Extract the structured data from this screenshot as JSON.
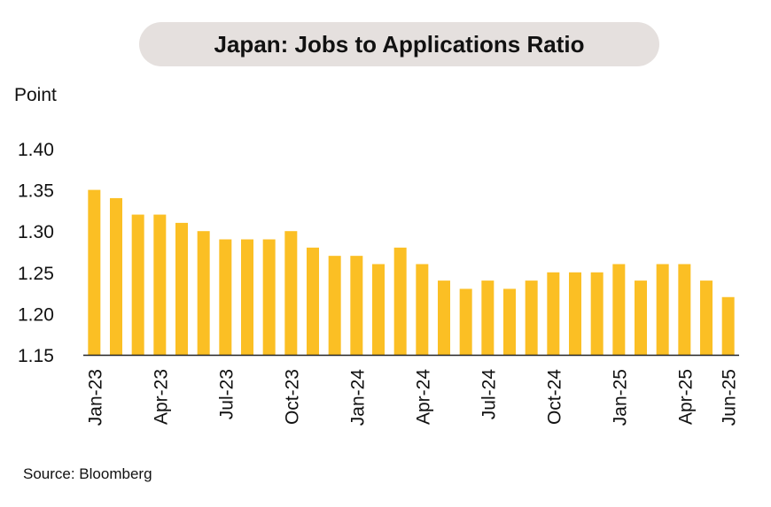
{
  "chart_data": {
    "type": "bar",
    "title": "Japan: Jobs to Applications Ratio",
    "ylabel": "Point",
    "source": "Source: Bloomberg",
    "categories": [
      "Jan-23",
      "Feb-23",
      "Mar-23",
      "Apr-23",
      "May-23",
      "Jun-23",
      "Jul-23",
      "Aug-23",
      "Sep-23",
      "Oct-23",
      "Nov-23",
      "Dec-23",
      "Jan-24",
      "Feb-24",
      "Mar-24",
      "Apr-24",
      "May-24",
      "Jun-24",
      "Jul-24",
      "Aug-24",
      "Sep-24",
      "Oct-24",
      "Nov-24",
      "Dec-24",
      "Jan-25",
      "Feb-25",
      "Mar-25",
      "Apr-25",
      "May-25",
      "Jun-25"
    ],
    "x_tick_labels": [
      "Jan-23",
      "Apr-23",
      "Jul-23",
      "Oct-23",
      "Jan-24",
      "Apr-24",
      "Jul-24",
      "Oct-24",
      "Jan-25",
      "Apr-25",
      "Jun-25"
    ],
    "values": [
      1.35,
      1.34,
      1.32,
      1.32,
      1.31,
      1.3,
      1.29,
      1.29,
      1.29,
      1.3,
      1.28,
      1.27,
      1.27,
      1.26,
      1.28,
      1.26,
      1.24,
      1.23,
      1.24,
      1.23,
      1.24,
      1.25,
      1.25,
      1.25,
      1.26,
      1.24,
      1.26,
      1.26,
      1.24,
      1.22
    ],
    "y_ticks": [
      "1.15",
      "1.20",
      "1.25",
      "1.30",
      "1.35",
      "1.40"
    ],
    "ylim": [
      1.15,
      1.4
    ],
    "grid": false,
    "legend": "none",
    "bar_color": "#fbbf24",
    "axis_color": "#222222"
  }
}
